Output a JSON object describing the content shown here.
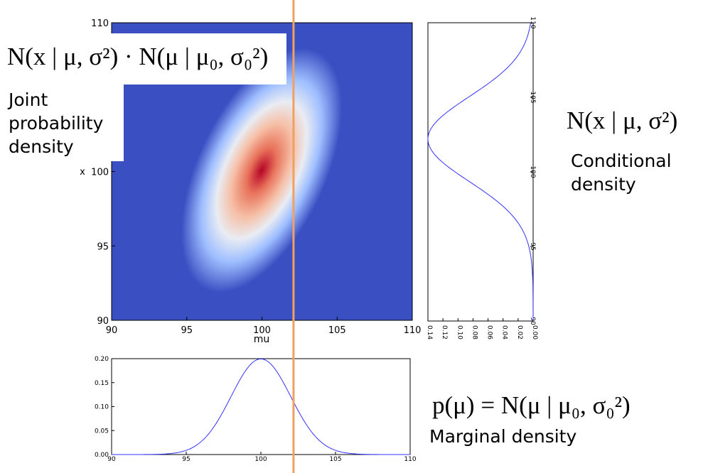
{
  "formulas": {
    "joint": "N(x | μ, σ²) · N(μ | μ₀, σ₀²)",
    "conditional": "N(x | μ, σ²)",
    "marginal": "p(μ) = N(μ | μ₀, σ₀²)"
  },
  "captions": {
    "joint": [
      "Joint",
      "probability",
      "density"
    ],
    "conditional": [
      "Conditional",
      "density"
    ],
    "marginal": "Marginal density"
  },
  "colors": {
    "heatmap_low": "#3a4fc2",
    "heatmap_high": "#b40426",
    "curve": "#3333ff",
    "cursor_line": "#f0a060"
  },
  "chart_data": [
    {
      "type": "heatmap",
      "id": "joint",
      "xlabel": "mu",
      "ylabel": "x",
      "xlim": [
        90,
        110
      ],
      "ylim": [
        90,
        110
      ],
      "xticks": [
        "90",
        "95",
        "100",
        "105",
        "110"
      ],
      "yticks": [
        "90",
        "95",
        "100",
        "105",
        "110"
      ],
      "center": [
        100,
        100
      ],
      "colormap": "coolwarm",
      "orientation": "elongated along x = mu diagonal"
    },
    {
      "type": "line",
      "id": "conditional",
      "orientation": "vertical",
      "x_axis": "x",
      "density_axis_label": "",
      "xlim": [
        90,
        110
      ],
      "density_lim": [
        0,
        0.14
      ],
      "xticks": [
        "90",
        "95",
        "100",
        "105",
        "110"
      ],
      "density_ticks": [
        "0.14",
        "0.12",
        "0.10",
        "0.08",
        "0.06",
        "0.04",
        "0.02",
        "0.00"
      ],
      "mean": 102.2,
      "sd": 2.85
    },
    {
      "type": "line",
      "id": "marginal",
      "xlabel": "",
      "xlim": [
        90,
        110
      ],
      "ylim": [
        0,
        0.2
      ],
      "xticks": [
        "90",
        "95",
        "100",
        "105",
        "110"
      ],
      "yticks": [
        "0.00",
        "0.05",
        "0.10",
        "0.15",
        "0.20"
      ],
      "mean": 100,
      "sd": 2.0
    },
    {
      "type": "line",
      "id": "cursor",
      "mu_value": 102.1
    }
  ]
}
